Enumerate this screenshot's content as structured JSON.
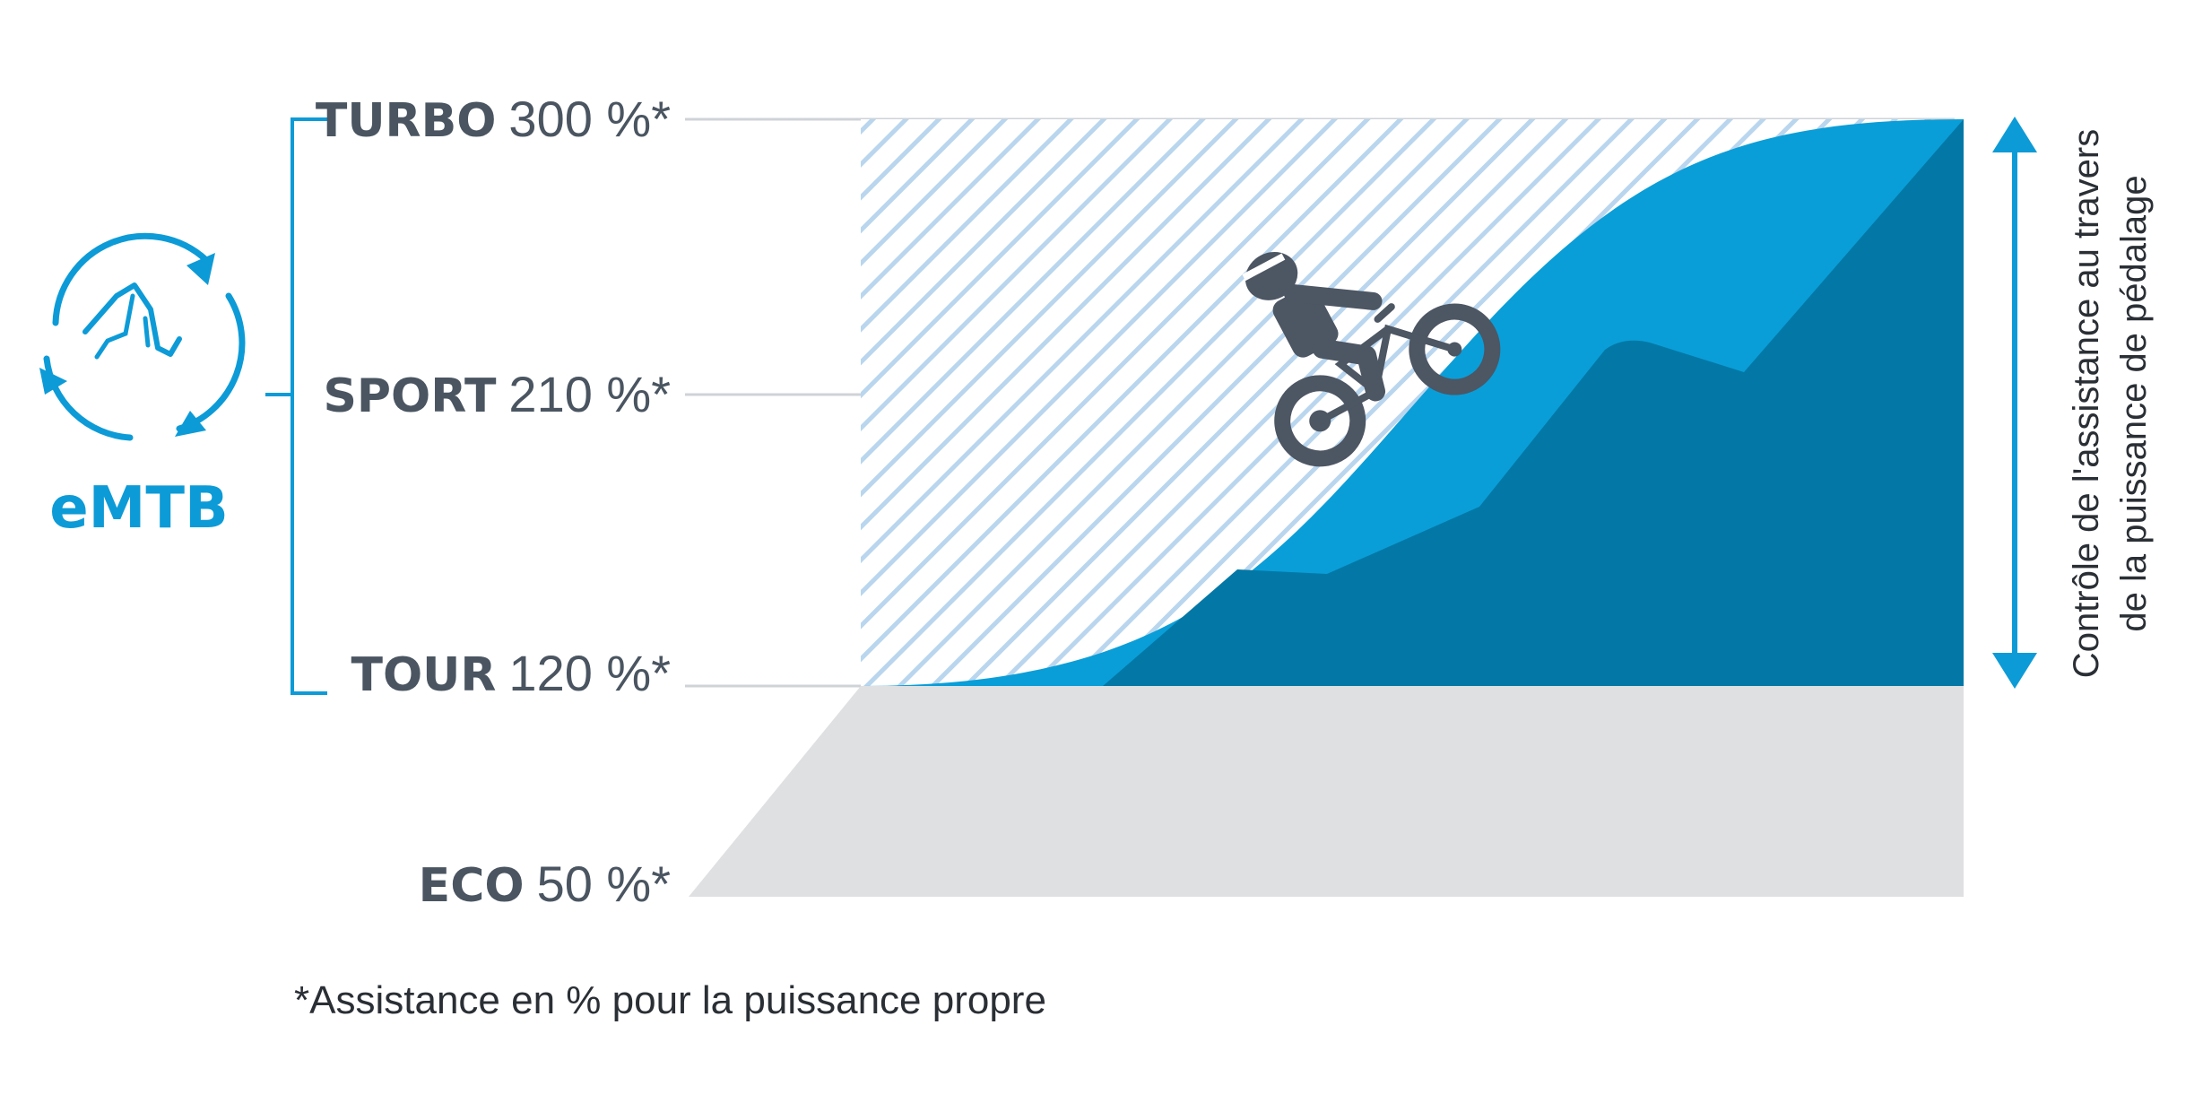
{
  "brand_label": "eMTB",
  "levels": [
    {
      "name": "TURBO",
      "value": "300 %*"
    },
    {
      "name": "SPORT",
      "value": "210 %*"
    },
    {
      "name": "TOUR",
      "value": "120 %*"
    },
    {
      "name": "ECO",
      "value": "50 %*"
    }
  ],
  "side_label": {
    "line1": "Contrôle de l'assistance au travers",
    "line2": "de la puissance de pédalage"
  },
  "footnote": "*Assistance en % pour la puissance propre",
  "icons": {
    "cycle": "emtb-cycle-arrows-icon",
    "rider": "mountain-biker-icon",
    "arrow": "double-headed-arrow-icon"
  },
  "colors": {
    "brand_blue": "#0d9bd7",
    "curve_blue": "#0a9ed8",
    "dark_blue": "#0378a6",
    "grey_area": "#dfe0e2",
    "hatch": "#b9d6ee",
    "text": "#4a5561",
    "rider": "#4d5663"
  }
}
